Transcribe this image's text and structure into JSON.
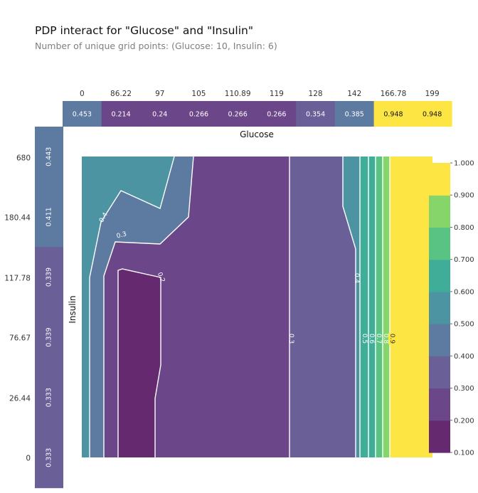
{
  "title": "PDP interact for \"Glucose\" and \"Insulin\"",
  "subtitle": "Number of unique grid points: (Glucose: 10, Insulin: 6)",
  "colors": {
    "scale": [
      "#65296f",
      "#6b4688",
      "#6a5f97",
      "#5d7aa0",
      "#4c94a2",
      "#40ad98",
      "#58c383",
      "#86d56b",
      "#bde050",
      "#fde643"
    ]
  },
  "chart_data": {
    "type": "heatmap",
    "title": "PDP interact for \"Glucose\" and \"Insulin\"",
    "subtitle": "Number of unique grid points: (Glucose: 10, Insulin: 6)",
    "glucose": {
      "label": "Glucose",
      "ticks": [
        "0",
        "86.22",
        "97",
        "105",
        "110.89",
        "119",
        "128",
        "142",
        "166.78",
        "199"
      ],
      "values": [
        0,
        86.22,
        97,
        105,
        110.89,
        119,
        128,
        142,
        166.78,
        199
      ],
      "pdp": [
        "0.453",
        "0.214",
        "0.24",
        "0.266",
        "0.266",
        "0.266",
        "0.354",
        "0.385",
        "0.948",
        "0.948"
      ]
    },
    "insulin": {
      "label": "Insulin",
      "ticks": [
        "680",
        "180.44",
        "117.78",
        "76.67",
        "26.44",
        "0"
      ],
      "values": [
        680,
        180.44,
        117.78,
        76.67,
        26.44,
        0
      ],
      "pdp": [
        "0.443",
        "0.411",
        "0.339",
        "0.339",
        "0.333",
        "0.333"
      ]
    },
    "contour_labels": [
      "0.2",
      "0.3",
      "0.4",
      "0.3",
      "0.4",
      "0.5",
      "0.6",
      "0.7",
      "0.8",
      "0.9"
    ],
    "colorbar": {
      "ticks": [
        "1.000",
        "0.900",
        "0.800",
        "0.700",
        "0.600",
        "0.500",
        "0.400",
        "0.300",
        "0.200",
        "0.100"
      ],
      "range": [
        0.1,
        1.0
      ]
    }
  }
}
